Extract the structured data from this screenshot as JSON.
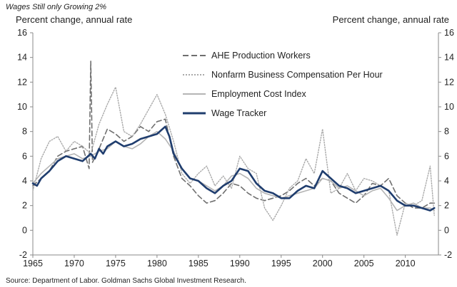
{
  "chart_data": {
    "type": "line",
    "title": "Wages Still only Growing 2%",
    "ylabel_left": "Percent change, annual rate",
    "ylabel_right": "Percent change, annual rate",
    "source": "Source: Department of Labor. Goldman Sachs Global Investment Research.",
    "xlim": [
      1965,
      2014
    ],
    "ylim": [
      -2,
      16
    ],
    "y_ticks": [
      "-2",
      "0",
      "2",
      "4",
      "6",
      "8",
      "10",
      "12",
      "14",
      "16"
    ],
    "x_ticks": [
      "1965",
      "1970",
      "1975",
      "1980",
      "1985",
      "1990",
      "1995",
      "2000",
      "2005",
      "2010"
    ],
    "colors": {
      "ahe": "#6f6f6f",
      "nonfarm": "#a9a9a9",
      "eci": "#b5b5b5",
      "tracker": "#1f3d6e",
      "axis": "#8a8a8a"
    },
    "series": [
      {
        "name": "AHE Production Workers",
        "style": "dashed",
        "x": [
          1965,
          1966,
          1967,
          1968,
          1969,
          1970,
          1971,
          1971.8,
          1972.0,
          1972.2,
          1973,
          1974,
          1975,
          1976,
          1977,
          1978,
          1979,
          1980,
          1981,
          1982,
          1983,
          1984,
          1985,
          1986,
          1987,
          1988,
          1989,
          1990,
          1991,
          1992,
          1993,
          1994,
          1995,
          1996,
          1997,
          1998,
          1999,
          2000,
          2001,
          2002,
          2003,
          2004,
          2005,
          2006,
          2007,
          2008,
          2009,
          2010,
          2011,
          2012,
          2013,
          2013.5
        ],
        "values": [
          3.6,
          4.2,
          4.8,
          6.0,
          6.4,
          6.6,
          6.8,
          5.0,
          13.7,
          5.5,
          6.6,
          8.2,
          7.8,
          7.2,
          7.6,
          8.4,
          8.0,
          8.8,
          9.0,
          6.0,
          4.2,
          3.6,
          2.8,
          2.2,
          2.4,
          3.0,
          3.8,
          3.6,
          3.0,
          2.6,
          2.4,
          2.6,
          2.8,
          3.2,
          3.8,
          4.2,
          3.6,
          4.2,
          4.0,
          3.0,
          2.6,
          2.2,
          2.8,
          3.8,
          3.6,
          4.2,
          2.8,
          2.2,
          1.8,
          1.8,
          2.2,
          2.2
        ]
      },
      {
        "name": "Nonfarm Business Compensation Per Hour",
        "style": "dotted",
        "x": [
          1965,
          1966,
          1967,
          1968,
          1969,
          1970,
          1971,
          1972,
          1973,
          1974,
          1975,
          1976,
          1977,
          1978,
          1979,
          1980,
          1981,
          1982,
          1983,
          1984,
          1985,
          1986,
          1987,
          1988,
          1989,
          1990,
          1991,
          1992,
          1993,
          1994,
          1995,
          1996,
          1997,
          1998,
          1999,
          2000,
          2001,
          2002,
          2003,
          2004,
          2005,
          2006,
          2007,
          2008,
          2009,
          2010,
          2011,
          2012,
          2013,
          2013.5
        ],
        "values": [
          3.2,
          5.8,
          7.2,
          7.6,
          6.4,
          7.2,
          6.8,
          6.2,
          8.6,
          10.2,
          11.6,
          8.0,
          7.6,
          8.6,
          9.8,
          11.0,
          9.4,
          7.2,
          4.6,
          3.8,
          4.6,
          5.2,
          3.6,
          4.4,
          3.4,
          6.0,
          5.0,
          4.6,
          1.8,
          0.8,
          2.0,
          3.4,
          4.0,
          5.8,
          4.6,
          8.2,
          3.0,
          3.4,
          4.6,
          3.2,
          4.2,
          4.0,
          3.6,
          3.2,
          -0.4,
          2.2,
          2.0,
          2.4,
          5.2,
          1.2
        ]
      },
      {
        "name": "Employment Cost Index",
        "style": "solid",
        "x": [
          1965,
          1966,
          1967,
          1968,
          1969,
          1970,
          1971,
          1972,
          1973,
          1974,
          1975,
          1976,
          1977,
          1978,
          1979,
          1980,
          1981,
          1982,
          1983,
          1984,
          1985,
          1986,
          1987,
          1988,
          1989,
          1990,
          1991,
          1992,
          1993,
          1994,
          1995,
          1996,
          1997,
          1998,
          1999,
          2000,
          2001,
          2002,
          2003,
          2004,
          2005,
          2006,
          2007,
          2008,
          2009,
          2010,
          2011,
          2012,
          2013,
          2013.5
        ],
        "values": [
          3.8,
          4.6,
          5.2,
          5.8,
          6.0,
          6.2,
          5.8,
          6.0,
          6.4,
          6.6,
          7.2,
          6.8,
          6.6,
          7.0,
          7.6,
          8.0,
          7.4,
          6.4,
          5.0,
          4.2,
          4.0,
          3.6,
          3.2,
          3.6,
          4.4,
          4.6,
          4.2,
          3.4,
          3.0,
          2.8,
          2.6,
          2.8,
          3.0,
          3.2,
          3.4,
          4.2,
          4.0,
          3.4,
          3.6,
          3.2,
          2.8,
          3.2,
          3.4,
          2.6,
          1.6,
          2.0,
          2.2,
          1.8,
          1.8,
          1.6
        ]
      },
      {
        "name": "Wage Tracker",
        "style": "solid-bold",
        "x": [
          1965,
          1965.5,
          1966,
          1967,
          1968,
          1969,
          1970,
          1971,
          1972,
          1972.5,
          1973,
          1973.5,
          1974,
          1975,
          1976,
          1977,
          1978,
          1979,
          1980,
          1980.5,
          1981,
          1981.5,
          1982,
          1983,
          1984,
          1985,
          1986,
          1987,
          1988,
          1989,
          1990,
          1991,
          1992,
          1993,
          1994,
          1995,
          1996,
          1997,
          1998,
          1999,
          2000,
          2001,
          2002,
          2003,
          2004,
          2005,
          2006,
          2007,
          2008,
          2009,
          2010,
          2011,
          2012,
          2013,
          2013.5
        ],
        "values": [
          3.8,
          3.6,
          4.2,
          4.8,
          5.6,
          6.0,
          5.8,
          5.6,
          6.2,
          5.8,
          6.6,
          6.2,
          6.8,
          7.2,
          6.8,
          7.0,
          7.4,
          7.6,
          7.8,
          8.1,
          8.4,
          7.6,
          6.2,
          5.0,
          4.2,
          4.0,
          3.4,
          3.0,
          3.6,
          4.0,
          5.0,
          4.8,
          3.8,
          3.2,
          3.0,
          2.6,
          2.6,
          3.2,
          3.6,
          3.4,
          4.8,
          4.2,
          3.6,
          3.4,
          3.0,
          3.2,
          3.4,
          3.6,
          3.2,
          2.4,
          2.0,
          2.0,
          1.8,
          1.6,
          1.8
        ]
      }
    ]
  }
}
